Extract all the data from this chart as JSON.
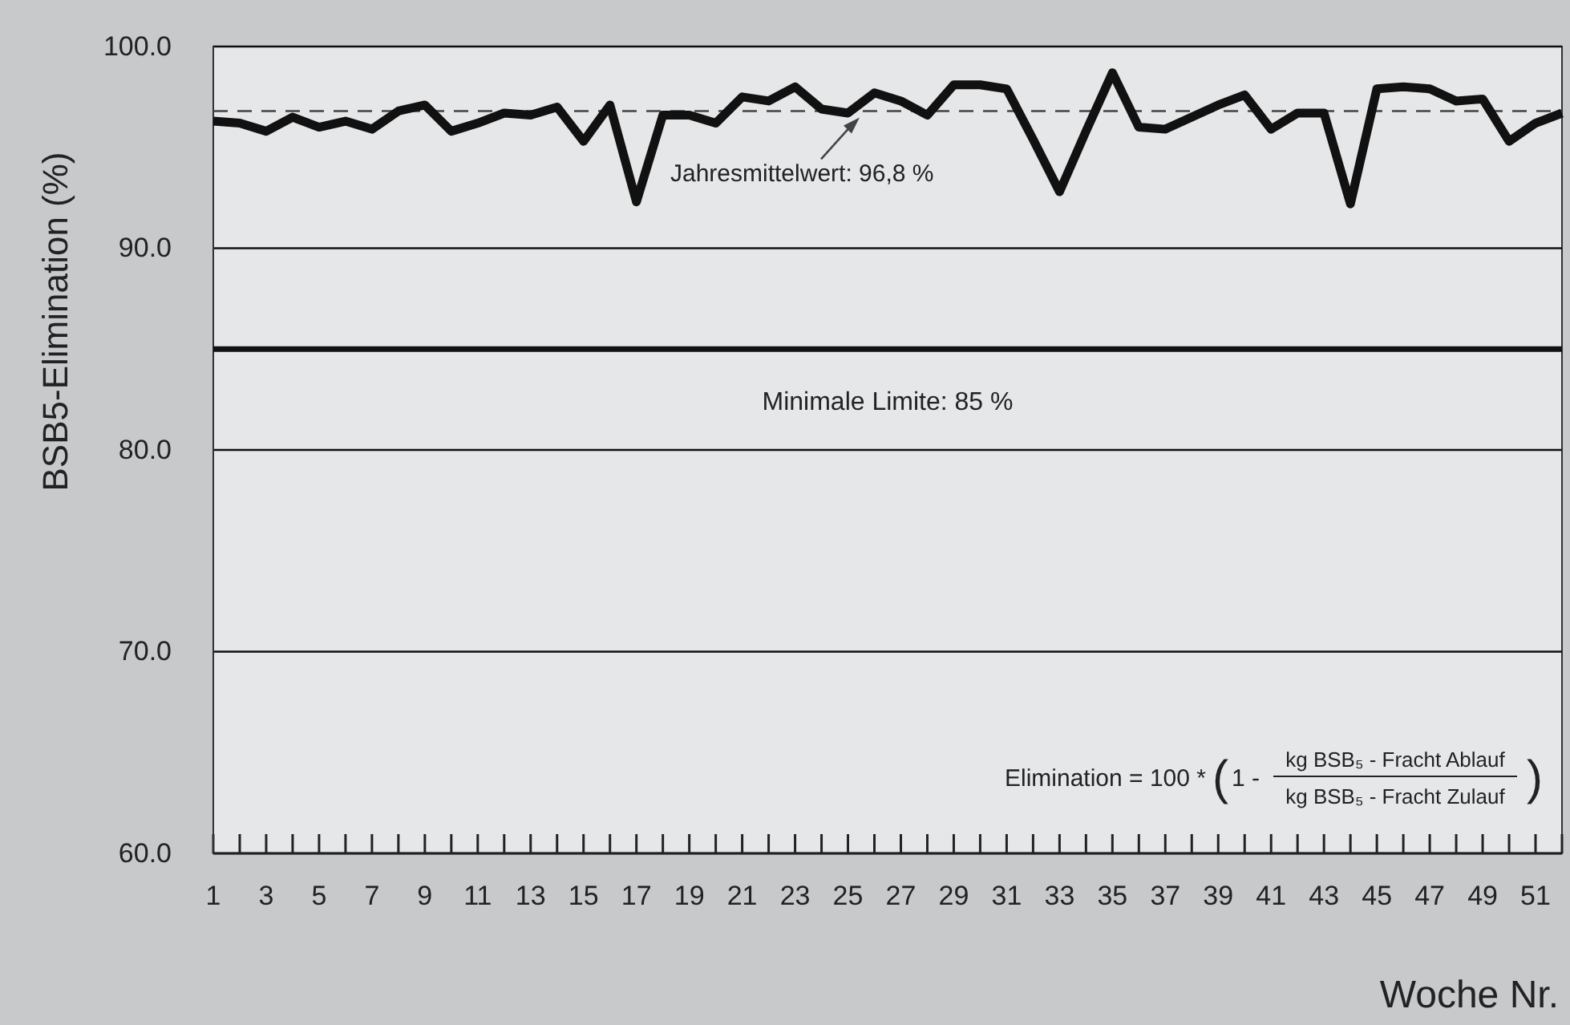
{
  "chart_data": {
    "type": "line",
    "ylabel": "BSB5-Elimination (%)",
    "xlabel": "Woche Nr.",
    "x": [
      1,
      2,
      3,
      4,
      5,
      6,
      7,
      8,
      9,
      10,
      11,
      12,
      13,
      14,
      15,
      16,
      17,
      18,
      19,
      20,
      21,
      22,
      23,
      24,
      25,
      26,
      27,
      28,
      29,
      30,
      31,
      32,
      33,
      34,
      35,
      36,
      37,
      38,
      39,
      40,
      41,
      42,
      43,
      44,
      45,
      46,
      47,
      48,
      49,
      50,
      51,
      52
    ],
    "series": [
      {
        "color": "#111111",
        "values": [
          96.3,
          96.2,
          95.8,
          96.5,
          96.0,
          96.3,
          95.9,
          96.8,
          97.1,
          95.8,
          96.2,
          96.7,
          96.6,
          97.0,
          95.3,
          97.1,
          92.3,
          96.6,
          96.6,
          96.2,
          97.5,
          97.3,
          98.0,
          96.9,
          96.7,
          97.7,
          97.3,
          96.6,
          98.1,
          98.1,
          97.9,
          95.4,
          92.8,
          95.8,
          98.7,
          96.0,
          95.9,
          96.5,
          97.1,
          97.6,
          95.9,
          96.7,
          96.7,
          92.2,
          97.9,
          98.0,
          97.9,
          97.3,
          97.4,
          95.3,
          96.2,
          96.7
        ]
      }
    ],
    "xlim": [
      1,
      52
    ],
    "ylim": [
      60,
      100
    ],
    "xticks": [
      1,
      {
        "value": 2,
        "label": null
      },
      3,
      {
        "value": 4,
        "label": null
      },
      5,
      {
        "value": 6,
        "label": null
      },
      7,
      {
        "value": 8,
        "label": null
      },
      9,
      {
        "value": 10,
        "label": null
      },
      11,
      {
        "value": 12,
        "label": null
      },
      13,
      {
        "value": 14,
        "label": null
      },
      15,
      {
        "value": 16,
        "label": null
      },
      17,
      {
        "value": 18,
        "label": null
      },
      19,
      {
        "value": 20,
        "label": null
      },
      21,
      {
        "value": 22,
        "label": null
      },
      23,
      {
        "value": 24,
        "label": null
      },
      25,
      {
        "value": 26,
        "label": null
      },
      27,
      {
        "value": 28,
        "label": null
      },
      29,
      {
        "value": 30,
        "label": null
      },
      31,
      {
        "value": 32,
        "label": null
      },
      33,
      {
        "value": 34,
        "label": null
      },
      35,
      {
        "value": 36,
        "label": null
      },
      37,
      {
        "value": 38,
        "label": null
      },
      39,
      {
        "value": 40,
        "label": null
      },
      41,
      {
        "value": 42,
        "label": null
      },
      43,
      {
        "value": 44,
        "label": null
      },
      45,
      {
        "value": 46,
        "label": null
      },
      47,
      {
        "value": 48,
        "label": null
      },
      49,
      {
        "value": 50,
        "label": null
      },
      51,
      {
        "value": 52,
        "label": null
      }
    ],
    "yticks": [
      {
        "value": 60,
        "label": "60.0"
      },
      {
        "value": 70,
        "label": "70.0"
      },
      {
        "value": 80,
        "label": "80.0"
      },
      {
        "value": 90,
        "label": "90.0"
      },
      {
        "value": 100,
        "label": "100.0"
      }
    ],
    "grid": "y",
    "marker": "none",
    "line_style": "solid",
    "ref_lines": [
      {
        "axis": "y",
        "value": 96.8,
        "label": "Jahresmittelwert: 96,8 %",
        "color": "#444444",
        "line_style": "dashed"
      },
      {
        "axis": "y",
        "value": 85,
        "label": "Minimale Limite: 85 %",
        "color": "#111111",
        "line_style": "solid"
      }
    ],
    "annotations": [
      "Elimination = 100 *",
      "(",
      "1 -",
      "kg BSB₅ - Fracht Ablauf",
      "kg BSB₅ - Fracht Zulauf",
      ")"
    ]
  }
}
